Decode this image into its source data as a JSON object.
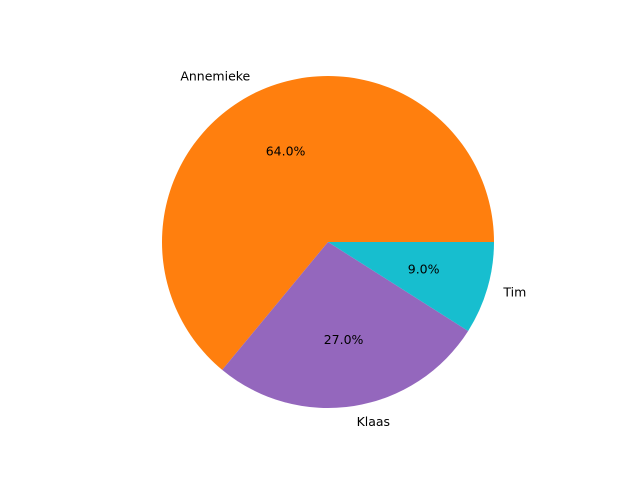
{
  "chart_data": {
    "type": "pie",
    "title": "",
    "slices": [
      {
        "label": "Annemieke",
        "value": 64.0,
        "pct_label": "64.0%",
        "color": "#ff7f0e"
      },
      {
        "label": "Klaas",
        "value": 27.0,
        "pct_label": "27.0%",
        "color": "#9467bd"
      },
      {
        "label": "Tim",
        "value": 9.0,
        "pct_label": "9.0%",
        "color": "#17becf"
      }
    ],
    "start_angle_deg": 0,
    "direction": "counterclockwise",
    "autopct_format": "%1.1f%%"
  }
}
